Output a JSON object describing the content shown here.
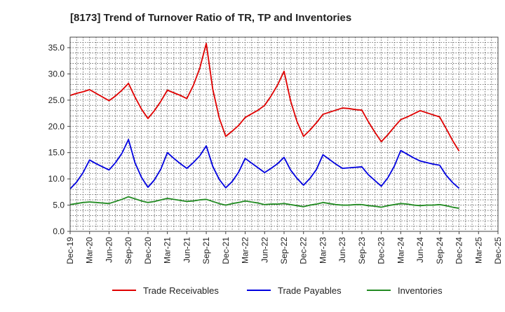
{
  "chart_data": {
    "type": "line",
    "title": "[8173]  Trend of Turnover Ratio of TR, TP and Inventories",
    "xlabel": "",
    "ylabel": "",
    "ylim": [
      0,
      37
    ],
    "y_ticks": [
      "0.0",
      "5.0",
      "10.0",
      "15.0",
      "20.0",
      "25.0",
      "30.0",
      "35.0"
    ],
    "y_tick_values": [
      0,
      5,
      10,
      15,
      20,
      25,
      30,
      35
    ],
    "x_tick_labels": [
      "Dec-19",
      "Mar-20",
      "Jun-20",
      "Sep-20",
      "Dec-20",
      "Mar-21",
      "Jun-21",
      "Sep-21",
      "Dec-21",
      "Mar-22",
      "Jun-22",
      "Sep-22",
      "Dec-22",
      "Mar-23",
      "Jun-23",
      "Sep-23",
      "Dec-23",
      "Mar-24",
      "Jun-24",
      "Sep-24",
      "Dec-24",
      "Mar-25",
      "Dec-25"
    ],
    "grid": true,
    "legend_position": "bottom",
    "x": [
      "Dec-19",
      "Jan-20",
      "Feb-20",
      "Mar-20",
      "Apr-20",
      "May-20",
      "Jun-20",
      "Jul-20",
      "Aug-20",
      "Sep-20",
      "Oct-20",
      "Nov-20",
      "Dec-20",
      "Jan-21",
      "Feb-21",
      "Mar-21",
      "Apr-21",
      "May-21",
      "Jun-21",
      "Jul-21",
      "Aug-21",
      "Sep-21",
      "Oct-21",
      "Nov-21",
      "Dec-21",
      "Jan-22",
      "Feb-22",
      "Mar-22",
      "Apr-22",
      "May-22",
      "Jun-22",
      "Jul-22",
      "Aug-22",
      "Sep-22",
      "Oct-22",
      "Nov-22",
      "Dec-22",
      "Jan-23",
      "Feb-23",
      "Mar-23",
      "Apr-23",
      "May-23",
      "Jun-23",
      "Jul-23",
      "Aug-23",
      "Sep-23",
      "Oct-23",
      "Nov-23",
      "Dec-23",
      "Jan-24",
      "Feb-24",
      "Mar-24",
      "Apr-24",
      "May-24",
      "Jun-24",
      "Jul-24",
      "Aug-24",
      "Sep-24",
      "Oct-24",
      "Nov-24",
      "Dec-24"
    ],
    "series": [
      {
        "name": "Trade Receivables",
        "color": "#e00000",
        "values": [
          25.9,
          26.3,
          26.6,
          27.0,
          26.3,
          25.6,
          24.9,
          25.8,
          26.9,
          28.2,
          25.6,
          23.3,
          21.5,
          23.0,
          24.8,
          26.9,
          26.4,
          25.9,
          25.3,
          27.8,
          31.1,
          35.8,
          27.1,
          21.6,
          18.1,
          19.1,
          20.2,
          21.7,
          22.4,
          23.1,
          24.0,
          25.8,
          27.9,
          30.5,
          24.9,
          20.9,
          18.1,
          19.3,
          20.7,
          22.3,
          22.7,
          23.1,
          23.5,
          23.4,
          23.2,
          23.1,
          20.9,
          18.9,
          17.1,
          18.4,
          19.9,
          21.3,
          21.8,
          22.4,
          23.0,
          22.6,
          22.2,
          21.8,
          19.6,
          17.3,
          15.3
        ]
      },
      {
        "name": "Trade Payables",
        "color": "#0000e0",
        "values": [
          8.1,
          9.4,
          11.2,
          13.6,
          12.9,
          12.3,
          11.7,
          13.1,
          14.9,
          17.5,
          13.1,
          10.3,
          8.4,
          9.8,
          11.9,
          15.0,
          13.9,
          12.9,
          12.0,
          13.1,
          14.4,
          16.3,
          12.4,
          9.9,
          8.3,
          9.5,
          11.3,
          13.9,
          13.0,
          12.1,
          11.2,
          12.0,
          12.9,
          14.1,
          11.7,
          10.1,
          8.8,
          10.1,
          11.8,
          14.6,
          13.7,
          12.8,
          12.0,
          12.1,
          12.2,
          12.3,
          10.8,
          9.7,
          8.6,
          10.2,
          12.4,
          15.4,
          14.7,
          14.0,
          13.4,
          13.1,
          12.8,
          12.6,
          10.7,
          9.3,
          8.2
        ]
      },
      {
        "name": "Inventories",
        "color": "#228b22",
        "values": [
          5.1,
          5.3,
          5.5,
          5.6,
          5.5,
          5.4,
          5.3,
          5.7,
          6.1,
          6.6,
          6.2,
          5.8,
          5.5,
          5.7,
          6.0,
          6.3,
          6.1,
          5.9,
          5.7,
          5.8,
          6.0,
          6.1,
          5.7,
          5.3,
          5.0,
          5.3,
          5.5,
          5.8,
          5.6,
          5.4,
          5.1,
          5.2,
          5.2,
          5.3,
          5.1,
          4.9,
          4.7,
          5.0,
          5.2,
          5.5,
          5.3,
          5.1,
          5.0,
          5.0,
          5.1,
          5.1,
          4.9,
          4.8,
          4.6,
          4.9,
          5.1,
          5.3,
          5.2,
          5.0,
          4.9,
          5.0,
          5.0,
          5.1,
          4.9,
          4.6,
          4.4
        ]
      }
    ]
  }
}
